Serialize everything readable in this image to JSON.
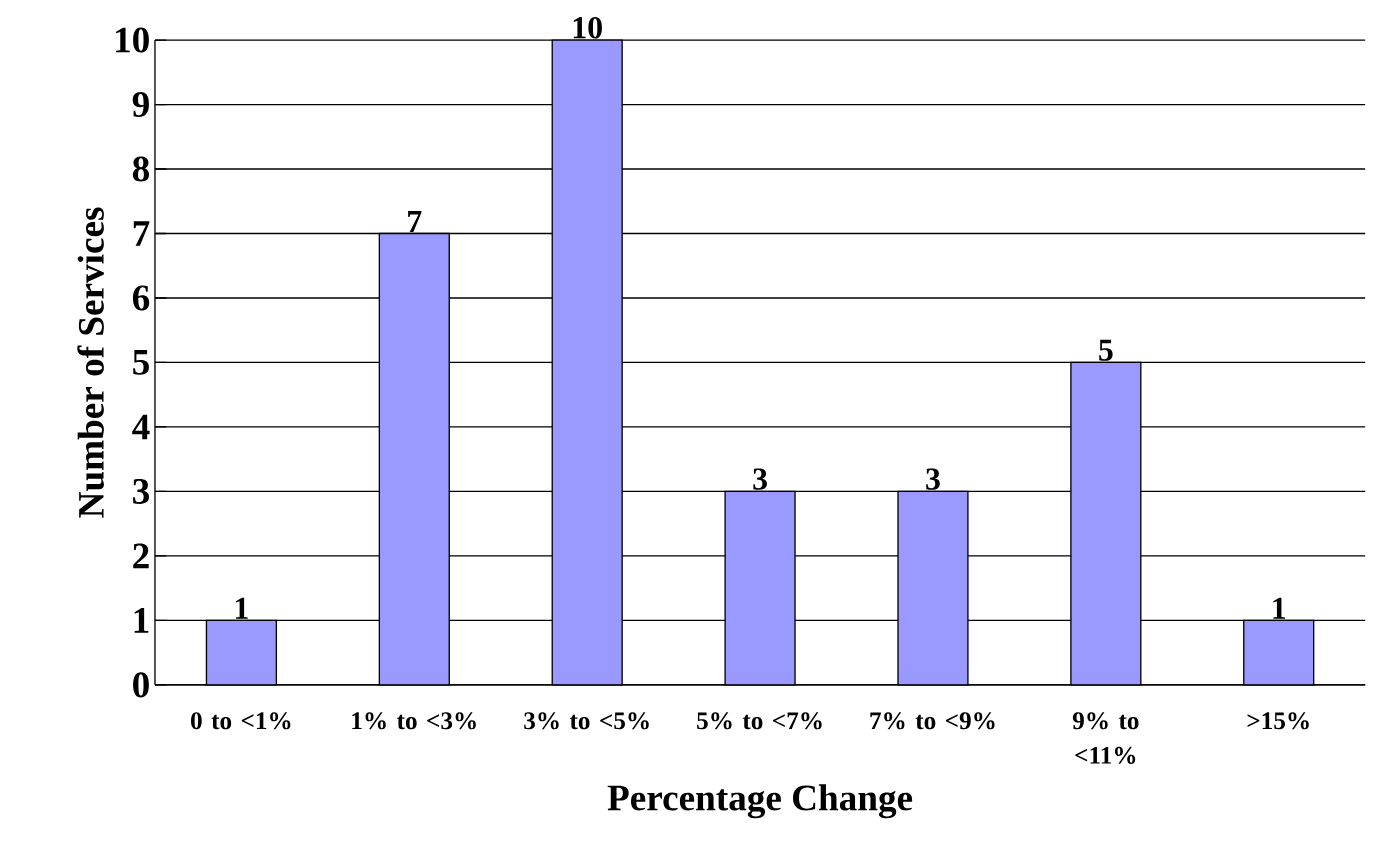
{
  "chart_data": {
    "type": "bar",
    "xlabel": "Percentage Change",
    "ylabel": "Number of Services",
    "categories": [
      "0 to <1%",
      "1% to <3%",
      "3% to <5%",
      "5% to <7%",
      "7% to <9%",
      "9% to <11%",
      ">15%"
    ],
    "values": [
      1,
      7,
      10,
      3,
      3,
      5,
      1
    ],
    "color": "#9999ff",
    "ylim": [
      0,
      10
    ],
    "yticks": [
      0,
      1,
      2,
      3,
      4,
      5,
      6,
      7,
      8,
      9,
      10
    ],
    "grid": "y",
    "data_labels": true
  }
}
